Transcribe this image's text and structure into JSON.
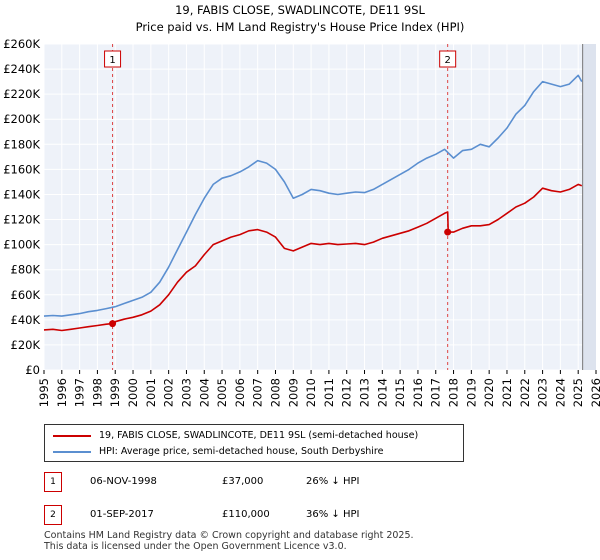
{
  "title": {
    "line1": "19, FABIS CLOSE, SWADLINCOTE, DE11 9SL",
    "line2": "Price paid vs. HM Land Registry's House Price Index (HPI)"
  },
  "chart_data": {
    "type": "line",
    "title": "19, FABIS CLOSE, SWADLINCOTE, DE11 9SL — Price paid vs. HM Land Registry's House Price Index (HPI)",
    "xlabel": "",
    "ylabel": "",
    "xlim": [
      1995,
      2026
    ],
    "ylim": [
      0,
      260000
    ],
    "y_ticks": [
      0,
      20000,
      40000,
      60000,
      80000,
      100000,
      120000,
      140000,
      160000,
      180000,
      200000,
      220000,
      240000,
      260000
    ],
    "y_tick_labels": [
      "£0",
      "£20K",
      "£40K",
      "£60K",
      "£80K",
      "£100K",
      "£120K",
      "£140K",
      "£160K",
      "£180K",
      "£200K",
      "£220K",
      "£240K",
      "£260K"
    ],
    "x_ticks": [
      1995,
      1996,
      1997,
      1998,
      1999,
      2000,
      2001,
      2002,
      2003,
      2004,
      2005,
      2006,
      2007,
      2008,
      2009,
      2010,
      2011,
      2012,
      2013,
      2014,
      2015,
      2016,
      2017,
      2018,
      2019,
      2020,
      2021,
      2022,
      2023,
      2024,
      2025,
      2026
    ],
    "x_tick_labels": [
      "1995",
      "1996",
      "1997",
      "1998",
      "1999",
      "2000",
      "2001",
      "2002",
      "2003",
      "2004",
      "2005",
      "2006",
      "2007",
      "2008",
      "2009",
      "2010",
      "2011",
      "2012",
      "2013",
      "2014",
      "2015",
      "2016",
      "2017",
      "2018",
      "2019",
      "2020",
      "2021",
      "2022",
      "2023",
      "2024",
      "2025",
      "2026"
    ],
    "grid": true,
    "series": [
      {
        "name": "19, FABIS CLOSE, SWADLINCOTE, DE11 9SL (semi-detached house)",
        "color": "#cc0000",
        "x": [
          1995.0,
          1995.5,
          1996.0,
          1996.5,
          1997.0,
          1997.5,
          1998.0,
          1998.5,
          1998.85,
          1999.0,
          1999.5,
          2000.0,
          2000.5,
          2001.0,
          2001.5,
          2002.0,
          2002.5,
          2003.0,
          2003.5,
          2004.0,
          2004.5,
          2005.0,
          2005.5,
          2006.0,
          2006.5,
          2007.0,
          2007.5,
          2008.0,
          2008.5,
          2009.0,
          2009.5,
          2010.0,
          2010.5,
          2011.0,
          2011.5,
          2012.0,
          2012.5,
          2013.0,
          2013.5,
          2014.0,
          2014.5,
          2015.0,
          2015.5,
          2016.0,
          2016.5,
          2017.0,
          2017.5,
          2017.67,
          2017.7,
          2018.0,
          2018.5,
          2019.0,
          2019.5,
          2020.0,
          2020.5,
          2021.0,
          2021.5,
          2022.0,
          2022.5,
          2023.0,
          2023.5,
          2024.0,
          2024.5,
          2025.0,
          2025.2
        ],
        "y": [
          32000,
          32500,
          31500,
          32500,
          33500,
          34500,
          35500,
          36500,
          37000,
          38500,
          40500,
          42000,
          44000,
          47000,
          52000,
          60000,
          70000,
          78000,
          83000,
          92000,
          100000,
          103000,
          106000,
          108000,
          111000,
          112000,
          110000,
          106000,
          97000,
          95000,
          98000,
          101000,
          100000,
          101000,
          100000,
          100500,
          101000,
          100000,
          102000,
          105000,
          107000,
          109000,
          111000,
          114000,
          117000,
          121000,
          125000,
          126000,
          110000,
          110000,
          113000,
          115000,
          115000,
          116000,
          120000,
          125000,
          130000,
          133000,
          138000,
          145000,
          143000,
          142000,
          144000,
          148000,
          147000
        ]
      },
      {
        "name": "HPI: Average price, semi-detached house, South Derbyshire",
        "color": "#5b8fd0",
        "x": [
          1995.0,
          1995.5,
          1996.0,
          1996.5,
          1997.0,
          1997.5,
          1998.0,
          1998.5,
          1999.0,
          1999.5,
          2000.0,
          2000.5,
          2001.0,
          2001.5,
          2002.0,
          2002.5,
          2003.0,
          2003.5,
          2004.0,
          2004.5,
          2005.0,
          2005.5,
          2006.0,
          2006.5,
          2007.0,
          2007.5,
          2008.0,
          2008.5,
          2009.0,
          2009.5,
          2010.0,
          2010.5,
          2011.0,
          2011.5,
          2012.0,
          2012.5,
          2013.0,
          2013.5,
          2014.0,
          2014.5,
          2015.0,
          2015.5,
          2016.0,
          2016.5,
          2017.0,
          2017.5,
          2018.0,
          2018.5,
          2019.0,
          2019.5,
          2020.0,
          2020.5,
          2021.0,
          2021.5,
          2022.0,
          2022.5,
          2023.0,
          2023.5,
          2024.0,
          2024.5,
          2025.0,
          2025.2
        ],
        "y": [
          43000,
          43500,
          43000,
          44000,
          45000,
          46500,
          47500,
          49000,
          50500,
          53000,
          55500,
          58000,
          62000,
          70000,
          82000,
          96000,
          110000,
          124000,
          137000,
          148000,
          153000,
          155000,
          158000,
          162000,
          167000,
          165000,
          160000,
          150000,
          137000,
          140000,
          144000,
          143000,
          141000,
          140000,
          141000,
          142000,
          141500,
          144000,
          148000,
          152000,
          156000,
          160000,
          165000,
          169000,
          172000,
          176000,
          169000,
          175000,
          176000,
          180000,
          178000,
          185000,
          193000,
          204000,
          211000,
          222000,
          230000,
          228000,
          226000,
          228000,
          235000,
          230000
        ]
      }
    ],
    "sales": [
      {
        "label": "1",
        "x": 1998.85,
        "y": 37000
      },
      {
        "label": "2",
        "x": 2017.67,
        "y": 110000
      }
    ]
  },
  "legend": {
    "items": [
      {
        "label": "19, FABIS CLOSE, SWADLINCOTE, DE11 9SL (semi-detached house)",
        "color": "#cc0000"
      },
      {
        "label": "HPI: Average price, semi-detached house, South Derbyshire",
        "color": "#5b8fd0"
      }
    ]
  },
  "sales_table": [
    {
      "num": "1",
      "date": "06-NOV-1998",
      "price": "£37,000",
      "hpi": "26% ↓ HPI"
    },
    {
      "num": "2",
      "date": "01-SEP-2017",
      "price": "£110,000",
      "hpi": "36% ↓ HPI"
    }
  ],
  "footer": {
    "line1": "Contains HM Land Registry data © Crown copyright and database right 2025.",
    "line2": "This data is licensed under the Open Government Licence v3.0."
  }
}
